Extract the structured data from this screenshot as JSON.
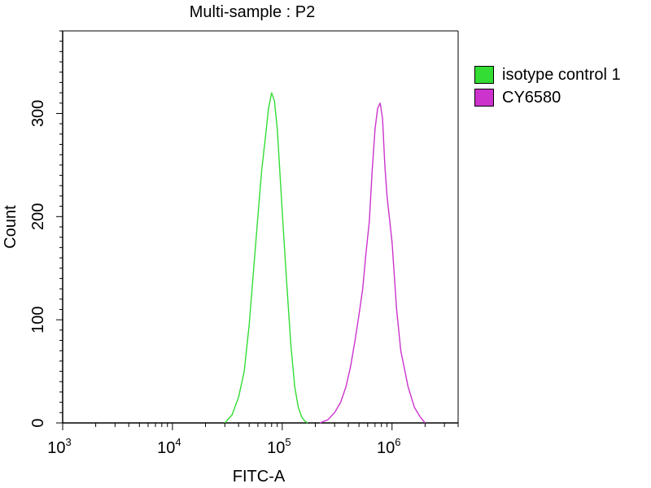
{
  "chart_data": {
    "type": "area",
    "title": "Multi-sample : P2",
    "xlabel": "FITC-A",
    "ylabel": "Count",
    "xscale": "log",
    "xlim": [
      1000,
      4000000
    ],
    "ylim": [
      0,
      380
    ],
    "x_ticks": [
      1000,
      10000,
      100000,
      1000000
    ],
    "x_tick_labels": [
      {
        "base": "10",
        "exp": "3"
      },
      {
        "base": "10",
        "exp": "4"
      },
      {
        "base": "10",
        "exp": "5"
      },
      {
        "base": "10",
        "exp": "6"
      }
    ],
    "y_ticks": [
      0,
      100,
      200,
      300
    ],
    "y_tick_labels": [
      "0",
      "100",
      "200",
      "300"
    ],
    "legend_position": "right",
    "series": [
      {
        "name": "isotype control 1",
        "color": "#33dd33",
        "x": [
          30000,
          35000,
          40000,
          45000,
          50000,
          55000,
          60000,
          65000,
          70000,
          75000,
          80000,
          85000,
          90000,
          95000,
          100000,
          110000,
          120000,
          130000,
          140000,
          150000,
          160000,
          170000
        ],
        "y": [
          0,
          8,
          25,
          50,
          95,
          150,
          200,
          245,
          275,
          305,
          320,
          312,
          285,
          245,
          205,
          135,
          75,
          35,
          15,
          6,
          2,
          0
        ]
      },
      {
        "name": "CY6580",
        "color": "#cc33cc",
        "x": [
          220000,
          260000,
          300000,
          340000,
          380000,
          420000,
          460000,
          500000,
          540000,
          580000,
          620000,
          660000,
          700000,
          740000,
          780000,
          820000,
          860000,
          900000,
          1000000,
          1100000,
          1200000,
          1400000,
          1600000,
          1800000,
          2000000
        ],
        "y": [
          0,
          3,
          10,
          20,
          35,
          55,
          80,
          105,
          130,
          165,
          195,
          245,
          285,
          305,
          310,
          295,
          250,
          220,
          175,
          110,
          70,
          35,
          15,
          6,
          0
        ]
      }
    ]
  }
}
